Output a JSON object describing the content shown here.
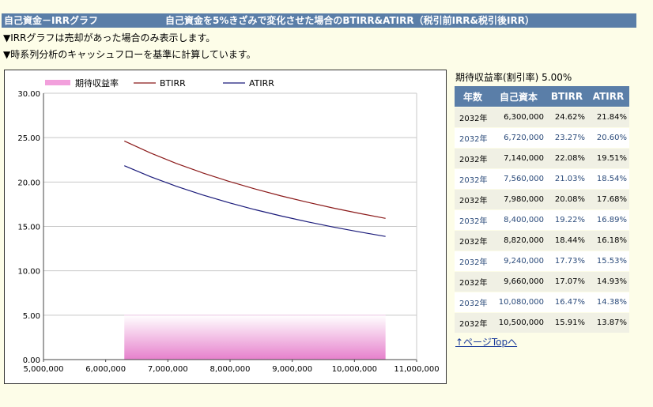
{
  "header": {
    "title": "自己資金－IRRグラフ",
    "subtitle": "自己資金を5%きざみで変化させた場合のBTIRR&ATIRR（税引前IRR&税引後IRR）"
  },
  "notes": [
    "▼IRRグラフは売却があった場合のみ表示します。",
    "▼時系列分析のキャッシュフローを基準に計算しています。"
  ],
  "side": {
    "title": "期待収益率(割引率) 5.00%",
    "columns": [
      "年数",
      "自己資本",
      "BTIRR",
      "ATIRR"
    ],
    "rows": [
      [
        "2032年",
        "6,300,000",
        "24.62%",
        "21.84%"
      ],
      [
        "2032年",
        "6,720,000",
        "23.27%",
        "20.60%"
      ],
      [
        "2032年",
        "7,140,000",
        "22.08%",
        "19.51%"
      ],
      [
        "2032年",
        "7,560,000",
        "21.03%",
        "18.54%"
      ],
      [
        "2032年",
        "7,980,000",
        "20.08%",
        "17.68%"
      ],
      [
        "2032年",
        "8,400,000",
        "19.22%",
        "16.89%"
      ],
      [
        "2032年",
        "8,820,000",
        "18.44%",
        "16.18%"
      ],
      [
        "2032年",
        "9,240,000",
        "17.73%",
        "15.53%"
      ],
      [
        "2032年",
        "9,660,000",
        "17.07%",
        "14.93%"
      ],
      [
        "2032年",
        "10,080,000",
        "16.47%",
        "14.38%"
      ],
      [
        "2032年",
        "10,500,000",
        "15.91%",
        "13.87%"
      ]
    ],
    "page_top_link": "↑ページTopへ"
  },
  "chart_data": {
    "type": "line",
    "title": "",
    "xlabel": "",
    "ylabel": "",
    "xlim": [
      5000000,
      11000000
    ],
    "ylim": [
      0,
      30
    ],
    "x_ticks": [
      5000000,
      6000000,
      7000000,
      8000000,
      9000000,
      10000000,
      11000000
    ],
    "x_tick_labels": [
      "5,000,000",
      "6,000,000",
      "7,000,000",
      "8,000,000",
      "9,000,000",
      "10,000,000",
      "11,000,000"
    ],
    "y_ticks": [
      0,
      5,
      10,
      15,
      20,
      25,
      30
    ],
    "y_tick_labels": [
      "0.00",
      "5.00",
      "10.00",
      "15.00",
      "20.00",
      "25.00",
      "30.00"
    ],
    "grid": true,
    "legend": "top-left",
    "x": [
      6300000,
      6720000,
      7140000,
      7560000,
      7980000,
      8400000,
      8820000,
      9240000,
      9660000,
      10080000,
      10500000
    ],
    "series": [
      {
        "name": "期待収益率",
        "kind": "area",
        "color": "#e066c8",
        "values": [
          5,
          5,
          5,
          5,
          5,
          5,
          5,
          5,
          5,
          5,
          5
        ]
      },
      {
        "name": "BTIRR",
        "kind": "line",
        "color": "#8b1a1a",
        "values": [
          24.62,
          23.27,
          22.08,
          21.03,
          20.08,
          19.22,
          18.44,
          17.73,
          17.07,
          16.47,
          15.91
        ]
      },
      {
        "name": "ATIRR",
        "kind": "line",
        "color": "#1a1a7a",
        "values": [
          21.84,
          20.6,
          19.51,
          18.54,
          17.68,
          16.89,
          16.18,
          15.53,
          14.93,
          14.38,
          13.87
        ]
      }
    ]
  }
}
